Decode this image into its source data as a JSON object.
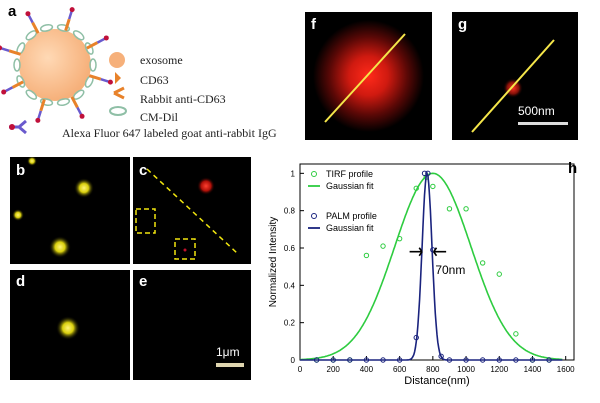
{
  "panel_labels": {
    "a": "a",
    "b": "b",
    "c": "c",
    "d": "d",
    "e": "e",
    "f": "f",
    "g": "g",
    "h": "h"
  },
  "schematic_legend": {
    "exosome": "exosome",
    "cd63": "CD63",
    "rabbit_anti_cd63": "Rabbit anti-CD63",
    "cm_dil": "CM-Dil",
    "alexa": "Alexa Fluor 647 labeled goat anti-rabbit IgG"
  },
  "scale_bars": {
    "e": "1μm",
    "g": "500nm"
  },
  "colors": {
    "exosome": "#f6b07a",
    "cd63": "#e8822a",
    "antibody_blue": "#6a5acd",
    "antibody_red": "#c0103a",
    "cmdil": "#8fbfa6",
    "tirf": "#2ecc40",
    "palm": "#1a237e",
    "yellow_spot": "#f1e60f",
    "red_spot": "#ff2a1a"
  },
  "chart_data": {
    "type": "line",
    "title": "",
    "xlabel": "Distance(nm)",
    "ylabel": "Normalized Intensity",
    "xlim": [
      0,
      1650
    ],
    "ylim": [
      0,
      1.05
    ],
    "xticks": [
      0,
      200,
      400,
      600,
      800,
      1000,
      1200,
      1400,
      1600
    ],
    "yticks": [
      0,
      0.2,
      0.4,
      0.6,
      0.8,
      1
    ],
    "annotation": "70nm",
    "legend_position": "top-left",
    "series": [
      {
        "name": "TIRF profile",
        "kind": "scatter",
        "color": "#2ecc40",
        "x": [
          100,
          200,
          300,
          400,
          500,
          600,
          700,
          760,
          800,
          900,
          1000,
          1100,
          1200,
          1300,
          1400,
          1500
        ],
        "y": [
          0,
          0,
          0,
          0.56,
          0.61,
          0.65,
          0.92,
          0.98,
          0.93,
          0.81,
          0.81,
          0.52,
          0.46,
          0.14,
          0,
          0
        ]
      },
      {
        "name": "Gaussian fit",
        "kind": "line",
        "color": "#2ecc40",
        "mean": 800,
        "sigma": 230,
        "xrange": [
          0,
          1580
        ]
      },
      {
        "name": "PALM profile",
        "kind": "scatter",
        "color": "#1a237e",
        "x": [
          100,
          200,
          300,
          400,
          500,
          600,
          700,
          750,
          770,
          800,
          850,
          900,
          1000,
          1100,
          1200,
          1300,
          1400,
          1500
        ],
        "y": [
          0,
          0,
          0,
          0,
          0,
          0,
          0.12,
          1.0,
          1.0,
          0.59,
          0.02,
          0,
          0,
          0,
          0,
          0,
          0,
          0
        ]
      },
      {
        "name": "Gaussian fit",
        "kind": "line",
        "color": "#1a237e",
        "mean": 765,
        "sigma": 30,
        "xrange": [
          0,
          1580
        ]
      }
    ]
  }
}
